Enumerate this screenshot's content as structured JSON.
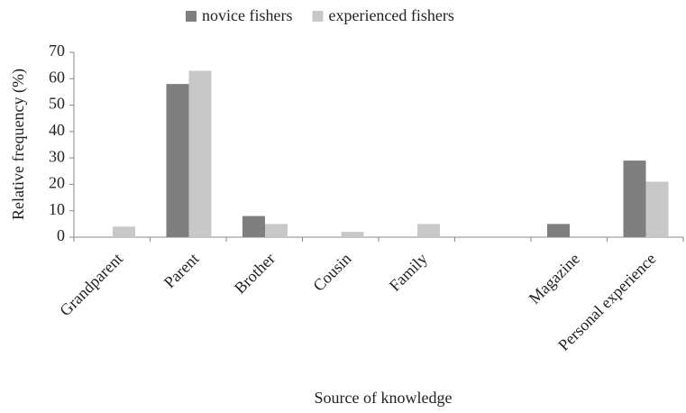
{
  "chart_data": {
    "type": "bar",
    "x_label": "Source of knowledge",
    "y_label": "Relative  frequency  (%)",
    "categories": [
      "Grandparent",
      "Parent",
      "Brother",
      "Cousin",
      "Family",
      null,
      "Magazine",
      "Personal experience"
    ],
    "series": [
      {
        "name": "novice fishers",
        "color": "#7f7f7f",
        "values": [
          0,
          58,
          8,
          0,
          0,
          0,
          5,
          29
        ]
      },
      {
        "name": "experienced fishers",
        "color": "#c8c8c8",
        "values": [
          4,
          63,
          5,
          2,
          5,
          0,
          0,
          21
        ]
      }
    ],
    "ylim": [
      0,
      70
    ],
    "yticks": [
      0,
      10,
      20,
      30,
      40,
      50,
      60,
      70
    ],
    "legend": "top"
  }
}
